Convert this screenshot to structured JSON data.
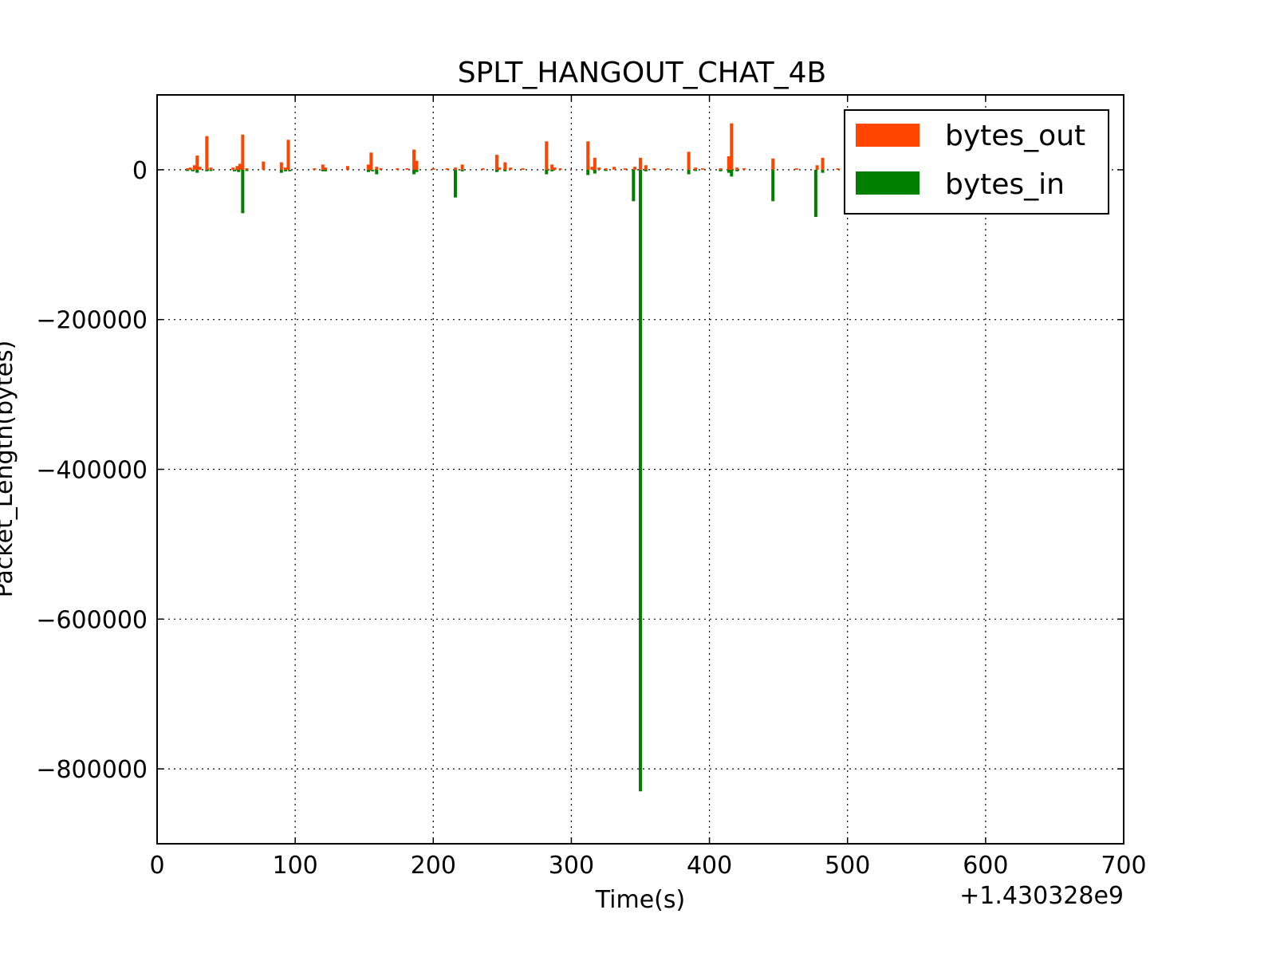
{
  "chart_data": {
    "type": "bar",
    "title": "SPLT_HANGOUT_CHAT_4B",
    "xlabel": "Time(s)",
    "ylabel": "Packet_Length(bytes)",
    "x_offset_label": "+1.430328e9",
    "xlim": [
      0,
      700
    ],
    "ylim": [
      -900000,
      100000
    ],
    "xticks": [
      0,
      100,
      200,
      300,
      400,
      500,
      600,
      700
    ],
    "yticks": [
      0,
      -200000,
      -400000,
      -600000,
      -800000
    ],
    "ytick_labels": [
      "0",
      "−200000",
      "−400000",
      "−600000",
      "−800000"
    ],
    "grid": true,
    "legend_position": "top-right",
    "series": [
      {
        "name": "bytes_out",
        "color": "#ff4500",
        "points": [
          [
            22,
            2000
          ],
          [
            24,
            3000
          ],
          [
            27,
            6000
          ],
          [
            29,
            19000
          ],
          [
            31,
            4000
          ],
          [
            36,
            45000
          ],
          [
            39,
            3000
          ],
          [
            55,
            3000
          ],
          [
            58,
            5000
          ],
          [
            60,
            8000
          ],
          [
            62,
            47000
          ],
          [
            65,
            2000
          ],
          [
            77,
            11000
          ],
          [
            90,
            10000
          ],
          [
            93,
            3000
          ],
          [
            95,
            40000
          ],
          [
            114,
            2000
          ],
          [
            120,
            7000
          ],
          [
            122,
            3000
          ],
          [
            138,
            5000
          ],
          [
            153,
            7000
          ],
          [
            155,
            23000
          ],
          [
            159,
            4000
          ],
          [
            162,
            2000
          ],
          [
            174,
            2000
          ],
          [
            181,
            2000
          ],
          [
            186,
            27000
          ],
          [
            188,
            12000
          ],
          [
            200,
            2000
          ],
          [
            210,
            2000
          ],
          [
            216,
            3000
          ],
          [
            221,
            7000
          ],
          [
            236,
            2000
          ],
          [
            246,
            20000
          ],
          [
            248,
            3000
          ],
          [
            252,
            10000
          ],
          [
            256,
            3000
          ],
          [
            265,
            2000
          ],
          [
            282,
            38000
          ],
          [
            286,
            7000
          ],
          [
            288,
            3000
          ],
          [
            292,
            2000
          ],
          [
            312,
            38000
          ],
          [
            315,
            4000
          ],
          [
            317,
            16000
          ],
          [
            320,
            3000
          ],
          [
            325,
            2000
          ],
          [
            331,
            4000
          ],
          [
            339,
            2000
          ],
          [
            346,
            4000
          ],
          [
            350,
            16000
          ],
          [
            354,
            6000
          ],
          [
            360,
            2000
          ],
          [
            370,
            2000
          ],
          [
            385,
            24000
          ],
          [
            390,
            3000
          ],
          [
            395,
            2000
          ],
          [
            408,
            2000
          ],
          [
            414,
            18000
          ],
          [
            416,
            62000
          ],
          [
            420,
            3000
          ],
          [
            425,
            2000
          ],
          [
            446,
            15000
          ],
          [
            463,
            2000
          ],
          [
            478,
            6000
          ],
          [
            482,
            16000
          ],
          [
            493,
            2000
          ]
        ]
      },
      {
        "name": "bytes_in",
        "color": "#008000",
        "points": [
          [
            22,
            -1000
          ],
          [
            26,
            -2000
          ],
          [
            29,
            -4000
          ],
          [
            36,
            -2000
          ],
          [
            39,
            -1500
          ],
          [
            56,
            -2000
          ],
          [
            59,
            -3000
          ],
          [
            62,
            -58000
          ],
          [
            65,
            -1500
          ],
          [
            90,
            -4000
          ],
          [
            93,
            -2000
          ],
          [
            96,
            -2000
          ],
          [
            120,
            -2000
          ],
          [
            122,
            -2000
          ],
          [
            153,
            -3000
          ],
          [
            156,
            -2000
          ],
          [
            159,
            -6000
          ],
          [
            186,
            -6000
          ],
          [
            188,
            -3000
          ],
          [
            216,
            -37000
          ],
          [
            221,
            -2000
          ],
          [
            246,
            -3000
          ],
          [
            252,
            -2000
          ],
          [
            282,
            -6000
          ],
          [
            286,
            -2000
          ],
          [
            312,
            -7000
          ],
          [
            317,
            -5000
          ],
          [
            325,
            -1500
          ],
          [
            345,
            -42000
          ],
          [
            350,
            -830000
          ],
          [
            354,
            -2000
          ],
          [
            385,
            -6000
          ],
          [
            390,
            -1500
          ],
          [
            408,
            -2000
          ],
          [
            414,
            -4000
          ],
          [
            416,
            -9000
          ],
          [
            420,
            -2000
          ],
          [
            446,
            -42000
          ],
          [
            477,
            -63000
          ],
          [
            482,
            -4000
          ]
        ]
      }
    ]
  }
}
